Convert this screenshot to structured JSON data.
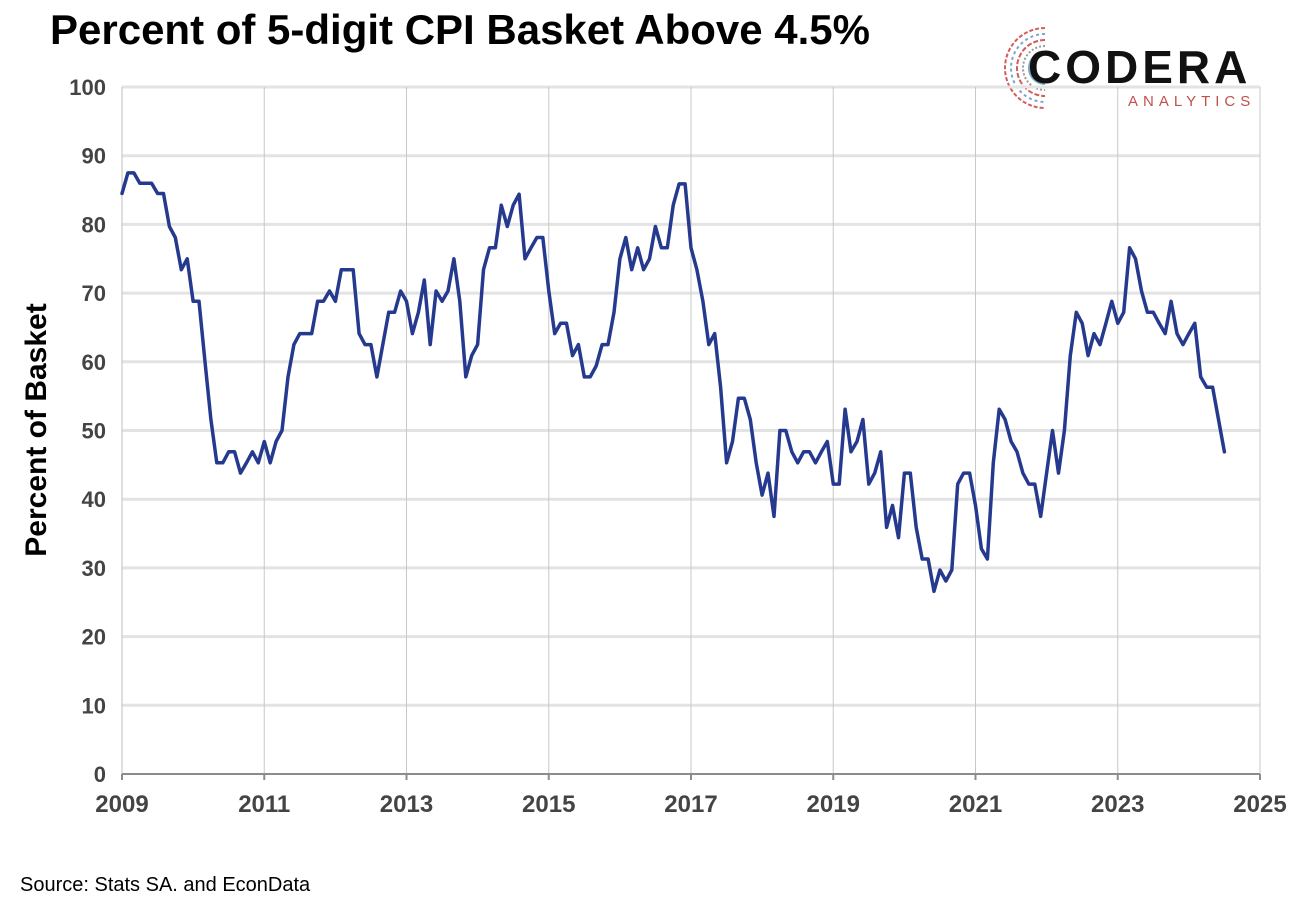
{
  "chart_data": {
    "type": "line",
    "title": "Percent of 5-digit CPI Basket Above 4.5%",
    "ylabel": "Percent of Basket",
    "xlabel": "",
    "ylim": [
      0,
      100
    ],
    "xlim": [
      2009,
      2025
    ],
    "yticks": [
      0,
      10,
      20,
      30,
      40,
      50,
      60,
      70,
      80,
      90,
      100
    ],
    "xticks": [
      2009,
      2011,
      2013,
      2015,
      2017,
      2019,
      2021,
      2023,
      2025
    ],
    "grid": {
      "horizontal": true,
      "vertical": true
    },
    "series": [
      {
        "color": "#253a8e",
        "x": [
          2009.0,
          2009.0833,
          2009.1667,
          2009.25,
          2009.3333,
          2009.4167,
          2009.5,
          2009.5833,
          2009.6667,
          2009.75,
          2009.8333,
          2009.9167,
          2010.0,
          2010.0833,
          2010.1667,
          2010.25,
          2010.3333,
          2010.4167,
          2010.5,
          2010.5833,
          2010.6667,
          2010.75,
          2010.8333,
          2010.9167,
          2011.0,
          2011.0833,
          2011.1667,
          2011.25,
          2011.3333,
          2011.4167,
          2011.5,
          2011.5833,
          2011.6667,
          2011.75,
          2011.8333,
          2011.9167,
          2012.0,
          2012.0833,
          2012.1667,
          2012.25,
          2012.3333,
          2012.4167,
          2012.5,
          2012.5833,
          2012.6667,
          2012.75,
          2012.8333,
          2012.9167,
          2013.0,
          2013.0833,
          2013.1667,
          2013.25,
          2013.3333,
          2013.4167,
          2013.5,
          2013.5833,
          2013.6667,
          2013.75,
          2013.8333,
          2013.9167,
          2014.0,
          2014.0833,
          2014.1667,
          2014.25,
          2014.3333,
          2014.4167,
          2014.5,
          2014.5833,
          2014.6667,
          2014.75,
          2014.8333,
          2014.9167,
          2015.0,
          2015.0833,
          2015.1667,
          2015.25,
          2015.3333,
          2015.4167,
          2015.5,
          2015.5833,
          2015.6667,
          2015.75,
          2015.8333,
          2015.9167,
          2016.0,
          2016.0833,
          2016.1667,
          2016.25,
          2016.3333,
          2016.4167,
          2016.5,
          2016.5833,
          2016.6667,
          2016.75,
          2016.8333,
          2016.9167,
          2017.0,
          2017.0833,
          2017.1667,
          2017.25,
          2017.3333,
          2017.4167,
          2017.5,
          2017.5833,
          2017.6667,
          2017.75,
          2017.8333,
          2017.9167,
          2018.0,
          2018.0833,
          2018.1667,
          2018.25,
          2018.3333,
          2018.4167,
          2018.5,
          2018.5833,
          2018.6667,
          2018.75,
          2018.8333,
          2018.9167,
          2019.0,
          2019.0833,
          2019.1667,
          2019.25,
          2019.3333,
          2019.4167,
          2019.5,
          2019.5833,
          2019.6667,
          2019.75,
          2019.8333,
          2019.9167,
          2020.0,
          2020.0833,
          2020.1667,
          2020.25,
          2020.3333,
          2020.4167,
          2020.5,
          2020.5833,
          2020.6667,
          2020.75,
          2020.8333,
          2020.9167,
          2021.0,
          2021.0833,
          2021.1667,
          2021.25,
          2021.3333,
          2021.4167,
          2021.5,
          2021.5833,
          2021.6667,
          2021.75,
          2021.8333,
          2021.9167,
          2022.0,
          2022.0833,
          2022.1667,
          2022.25,
          2022.3333,
          2022.4167,
          2022.5,
          2022.5833,
          2022.6667,
          2022.75,
          2022.8333,
          2022.9167,
          2023.0,
          2023.0833,
          2023.1667,
          2023.25,
          2023.3333,
          2023.4167,
          2023.5,
          2023.5833,
          2023.6667,
          2023.75,
          2023.8333,
          2023.9167,
          2024.0,
          2024.0833,
          2024.1667,
          2024.25,
          2024.3333,
          2024.4167,
          2024.5
        ],
        "values": [
          84.5,
          87.5,
          87.5,
          86.0,
          86.0,
          86.0,
          84.5,
          84.5,
          79.7,
          78.1,
          73.4,
          75.0,
          68.8,
          68.8,
          60.0,
          51.6,
          45.3,
          45.3,
          46.9,
          46.9,
          43.8,
          45.3,
          46.9,
          45.3,
          48.4,
          45.3,
          48.4,
          50.0,
          57.8,
          62.5,
          64.1,
          64.1,
          64.1,
          68.8,
          68.8,
          70.3,
          68.8,
          73.4,
          73.4,
          73.4,
          64.1,
          62.5,
          62.5,
          57.8,
          62.5,
          67.2,
          67.2,
          70.3,
          68.8,
          64.1,
          67.2,
          71.9,
          62.5,
          70.3,
          68.8,
          70.3,
          75.0,
          68.8,
          57.8,
          60.9,
          62.5,
          73.4,
          76.6,
          76.6,
          82.8,
          79.7,
          82.8,
          84.4,
          75.0,
          76.6,
          78.1,
          78.1,
          70.3,
          64.1,
          65.6,
          65.6,
          60.9,
          62.5,
          57.8,
          57.8,
          59.4,
          62.5,
          62.5,
          67.2,
          75.0,
          78.1,
          73.4,
          76.6,
          73.4,
          75.0,
          79.7,
          76.6,
          76.6,
          82.8,
          85.9,
          85.9,
          76.6,
          73.4,
          68.8,
          62.5,
          64.1,
          56.3,
          45.3,
          48.4,
          54.7,
          54.7,
          51.6,
          45.3,
          40.6,
          43.8,
          37.5,
          50.0,
          50.0,
          46.9,
          45.3,
          46.9,
          46.9,
          45.3,
          46.9,
          48.4,
          42.2,
          42.2,
          53.1,
          46.9,
          48.4,
          51.6,
          42.2,
          43.8,
          46.9,
          35.9,
          39.1,
          34.4,
          43.8,
          43.8,
          35.9,
          31.3,
          31.3,
          26.6,
          29.7,
          28.1,
          29.7,
          42.2,
          43.8,
          43.8,
          39.1,
          32.8,
          31.3,
          45.3,
          53.1,
          51.6,
          48.4,
          46.9,
          43.8,
          42.2,
          42.2,
          37.5,
          43.8,
          50.0,
          43.8,
          50.0,
          60.9,
          67.2,
          65.6,
          60.9,
          64.1,
          62.5,
          65.6,
          68.8,
          65.6,
          67.2,
          76.6,
          75.0,
          70.3,
          67.2,
          67.2,
          65.6,
          64.1,
          68.8,
          64.1,
          62.5,
          64.1,
          65.6,
          57.8,
          56.3,
          56.3,
          51.6,
          46.9
        ]
      }
    ]
  },
  "logo": {
    "wordmark": "CODERA",
    "tagline": "ANALYTICS"
  },
  "source": "Source: Stats SA. and EconData"
}
